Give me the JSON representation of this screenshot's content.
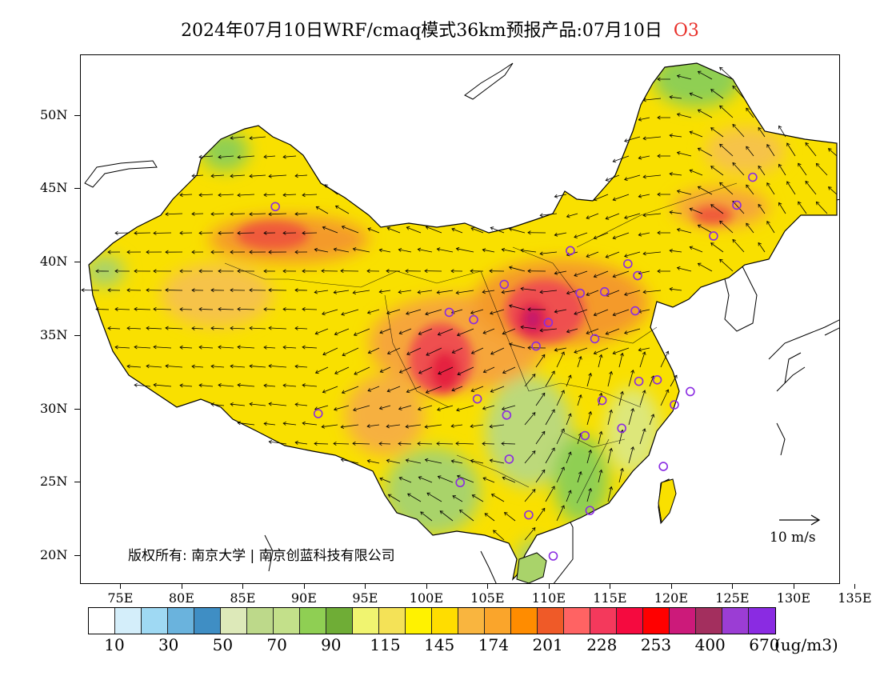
{
  "title": {
    "main": "2024年07月10日WRF/cmaq模式36km预报产品:07月10日",
    "species": "O3"
  },
  "axes": {
    "lat_labels": [
      "50N",
      "45N",
      "40N",
      "35N",
      "30N",
      "25N",
      "20N"
    ],
    "lon_labels": [
      "75E",
      "80E",
      "85E",
      "90E",
      "95E",
      "100E",
      "105E",
      "110E",
      "115E",
      "120E",
      "125E",
      "130E",
      "135E"
    ]
  },
  "map": {
    "copyright": "版权所有: 南京大学 | 南京创蓝科技有限公司",
    "wind_reference": "10 m/s",
    "variable": "O3",
    "forecast_date": "2024-07-10",
    "model": "WRF/cmaq 36km",
    "domain_extent": {
      "lon": [
        73,
        135
      ],
      "lat": [
        18,
        54
      ]
    }
  },
  "colorbar": {
    "colors": [
      "#ffffff",
      "#d4eefa",
      "#9fd9f3",
      "#6ab3dd",
      "#3f8ec4",
      "#dde9b9",
      "#bdd98a",
      "#c3e08a",
      "#8fcf53",
      "#6fad36",
      "#f0f470",
      "#f4e257",
      "#fff200",
      "#ffdd00",
      "#f9b53f",
      "#faa52b",
      "#ff8c00",
      "#ef5a28",
      "#ff6363",
      "#f4395c",
      "#f50a3f",
      "#ff0000",
      "#cc1a7a",
      "#a32f5e",
      "#9b3dd4",
      "#8a2be2"
    ],
    "labels": [
      "10",
      "30",
      "50",
      "70",
      "90",
      "115",
      "145",
      "174",
      "201",
      "228",
      "253",
      "400",
      "670"
    ],
    "unit": "(ug/m3)"
  },
  "stations": [
    {
      "lon": 87.6,
      "lat": 43.8
    },
    {
      "lon": 91.1,
      "lat": 29.7
    },
    {
      "lon": 101.8,
      "lat": 36.6
    },
    {
      "lon": 103.8,
      "lat": 36.1
    },
    {
      "lon": 106.3,
      "lat": 38.5
    },
    {
      "lon": 111.7,
      "lat": 40.8
    },
    {
      "lon": 104.1,
      "lat": 30.7
    },
    {
      "lon": 106.5,
      "lat": 29.6
    },
    {
      "lon": 106.7,
      "lat": 26.6
    },
    {
      "lon": 102.7,
      "lat": 25.0
    },
    {
      "lon": 108.3,
      "lat": 22.8
    },
    {
      "lon": 110.3,
      "lat": 20.0
    },
    {
      "lon": 113.3,
      "lat": 23.1
    },
    {
      "lon": 112.9,
      "lat": 28.2
    },
    {
      "lon": 114.3,
      "lat": 30.6
    },
    {
      "lon": 115.9,
      "lat": 28.7
    },
    {
      "lon": 119.3,
      "lat": 26.1
    },
    {
      "lon": 120.2,
      "lat": 30.3
    },
    {
      "lon": 118.8,
      "lat": 32.0
    },
    {
      "lon": 121.5,
      "lat": 31.2
    },
    {
      "lon": 117.3,
      "lat": 31.9
    },
    {
      "lon": 113.7,
      "lat": 34.8
    },
    {
      "lon": 108.9,
      "lat": 34.3
    },
    {
      "lon": 112.5,
      "lat": 37.9
    },
    {
      "lon": 114.5,
      "lat": 38.0
    },
    {
      "lon": 117.0,
      "lat": 36.7
    },
    {
      "lon": 116.4,
      "lat": 39.9
    },
    {
      "lon": 117.2,
      "lat": 39.1
    },
    {
      "lon": 123.4,
      "lat": 41.8
    },
    {
      "lon": 125.3,
      "lat": 43.9
    },
    {
      "lon": 126.6,
      "lat": 45.8
    },
    {
      "lon": 109.9,
      "lat": 35.9
    }
  ]
}
